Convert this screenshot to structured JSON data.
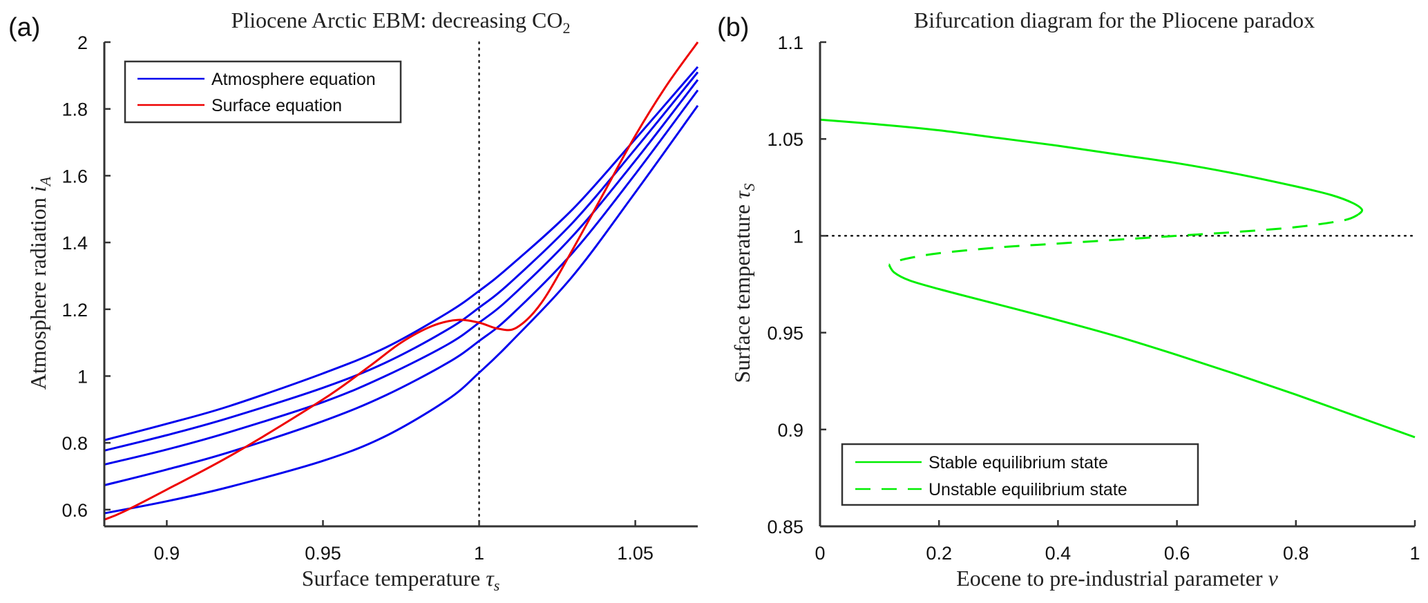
{
  "chart_data": [
    {
      "panel_label": "(a)",
      "type": "line",
      "title": "Pliocene Arctic EBM: decreasing CO",
      "title_subscript": "2",
      "xlabel": "Surface temperature ",
      "xlabel_symbol": "τ",
      "xlabel_subscript": "s",
      "ylabel": "Atmosphere radiation ",
      "ylabel_symbol": "i",
      "ylabel_subscript": "A",
      "xlim": [
        0.88,
        1.07
      ],
      "ylim": [
        0.55,
        2.0
      ],
      "xticks": [
        0.9,
        0.95,
        1.0,
        1.05
      ],
      "xtick_labels": [
        "0.9",
        "0.95",
        "1",
        "1.05"
      ],
      "yticks": [
        0.6,
        0.8,
        1.0,
        1.2,
        1.4,
        1.6,
        1.8,
        2.0
      ],
      "ytick_labels": [
        "0.6",
        "0.8",
        "1",
        "1.2",
        "1.4",
        "1.6",
        "1.8",
        "2"
      ],
      "grid": false,
      "legend": {
        "placement": "top-left",
        "entries": [
          {
            "label": "Atmosphere equation",
            "color": "#0000ee",
            "style": "solid"
          },
          {
            "label": "Surface equation",
            "color": "#ee0000",
            "style": "solid"
          }
        ]
      },
      "reference_lines": [
        {
          "orientation": "vertical",
          "x": 1.0,
          "style": "dotted",
          "color": "#000000"
        }
      ],
      "series": [
        {
          "name": "Atmosphere equation 1",
          "color": "#0000ee",
          "x": [
            0.88,
            0.9,
            0.92,
            0.95,
            0.97,
            0.99,
            1.0,
            1.01,
            1.03,
            1.05,
            1.07
          ],
          "y": [
            0.808,
            0.857,
            0.91,
            1.008,
            1.085,
            1.19,
            1.255,
            1.33,
            1.5,
            1.71,
            1.926
          ]
        },
        {
          "name": "Atmosphere equation 2",
          "color": "#0000ee",
          "x": [
            0.88,
            0.9,
            0.92,
            0.95,
            0.97,
            0.99,
            1.0,
            1.01,
            1.03,
            1.05,
            1.07
          ],
          "y": [
            0.777,
            0.823,
            0.875,
            0.965,
            1.04,
            1.14,
            1.205,
            1.28,
            1.46,
            1.68,
            1.91
          ]
        },
        {
          "name": "Atmosphere equation 3",
          "color": "#0000ee",
          "x": [
            0.88,
            0.9,
            0.92,
            0.95,
            0.97,
            0.99,
            1.0,
            1.01,
            1.03,
            1.05,
            1.07
          ],
          "y": [
            0.735,
            0.78,
            0.832,
            0.922,
            1.0,
            1.095,
            1.16,
            1.235,
            1.42,
            1.645,
            1.887
          ]
        },
        {
          "name": "Atmosphere equation 4",
          "color": "#0000ee",
          "x": [
            0.88,
            0.9,
            0.92,
            0.95,
            0.97,
            0.99,
            1.0,
            1.01,
            1.03,
            1.05,
            1.07
          ],
          "y": [
            0.673,
            0.72,
            0.772,
            0.865,
            0.942,
            1.04,
            1.105,
            1.18,
            1.37,
            1.605,
            1.856
          ]
        },
        {
          "name": "Atmosphere equation 5",
          "color": "#0000ee",
          "x": [
            0.88,
            0.9,
            0.92,
            0.95,
            0.97,
            0.99,
            1.0,
            1.01,
            1.03,
            1.05,
            1.07
          ],
          "y": [
            0.589,
            0.625,
            0.668,
            0.746,
            0.82,
            0.93,
            1.01,
            1.1,
            1.3,
            1.55,
            1.81
          ]
        },
        {
          "name": "Surface equation",
          "color": "#ee0000",
          "x": [
            0.88,
            0.886,
            0.9,
            0.922,
            0.95,
            0.965,
            0.975,
            0.985,
            0.993,
            1.0,
            1.006,
            1.012,
            1.02,
            1.03,
            1.04,
            1.05,
            1.06,
            1.07
          ],
          "y": [
            0.57,
            0.593,
            0.66,
            0.77,
            0.93,
            1.03,
            1.1,
            1.15,
            1.168,
            1.16,
            1.142,
            1.145,
            1.22,
            1.38,
            1.55,
            1.72,
            1.87,
            2.0
          ]
        }
      ]
    },
    {
      "panel_label": "(b)",
      "type": "line",
      "title": "Bifurcation diagram for the Pliocene paradox",
      "xlabel": "Eocene to pre-industrial parameter ",
      "xlabel_symbol": "ν",
      "ylabel": "Surface temperature ",
      "ylabel_symbol": "τ",
      "ylabel_subscript": "S",
      "xlim": [
        0,
        1
      ],
      "ylim": [
        0.85,
        1.1
      ],
      "xticks": [
        0,
        0.2,
        0.4,
        0.6,
        0.8,
        1.0
      ],
      "xtick_labels": [
        "0",
        "0.2",
        "0.4",
        "0.6",
        "0.8",
        "1"
      ],
      "yticks": [
        0.85,
        0.9,
        0.95,
        1.0,
        1.05,
        1.1
      ],
      "ytick_labels": [
        "0.85",
        "0.9",
        "0.95",
        "1",
        "1.05",
        "1.1"
      ],
      "grid": false,
      "legend": {
        "placement": "bottom-left",
        "entries": [
          {
            "label": "Stable equilibrium state",
            "color": "#00ee00",
            "style": "solid"
          },
          {
            "label": "Unstable equilibrium state",
            "color": "#00ee00",
            "style": "dashed"
          }
        ]
      },
      "reference_lines": [
        {
          "orientation": "horizontal",
          "y": 1.0,
          "style": "dotted",
          "color": "#000000"
        }
      ],
      "series": [
        {
          "name": "Stable upper branch",
          "color": "#00ee00",
          "style": "solid",
          "x": [
            0.0,
            0.1,
            0.2,
            0.3,
            0.4,
            0.5,
            0.6,
            0.7,
            0.8,
            0.86,
            0.895,
            0.911,
            0.905
          ],
          "y": [
            1.06,
            1.0575,
            1.0545,
            1.0505,
            1.0465,
            1.042,
            1.0375,
            1.032,
            1.0255,
            1.021,
            1.017,
            1.0135,
            1.011
          ]
        },
        {
          "name": "Unstable middle branch",
          "color": "#00ee00",
          "style": "dashed",
          "x": [
            0.905,
            0.88,
            0.8,
            0.7,
            0.6,
            0.5,
            0.4,
            0.3,
            0.2,
            0.15,
            0.125,
            0.116
          ],
          "y": [
            1.011,
            1.008,
            1.0045,
            1.002,
            1.0,
            0.998,
            0.996,
            0.994,
            0.991,
            0.9885,
            0.9865,
            0.985
          ]
        },
        {
          "name": "Stable lower branch",
          "color": "#00ee00",
          "style": "solid",
          "x": [
            0.116,
            0.125,
            0.15,
            0.2,
            0.3,
            0.4,
            0.5,
            0.6,
            0.7,
            0.8,
            0.9,
            1.0
          ],
          "y": [
            0.985,
            0.981,
            0.977,
            0.9725,
            0.9645,
            0.9565,
            0.948,
            0.9385,
            0.9285,
            0.918,
            0.907,
            0.896
          ]
        }
      ]
    }
  ]
}
